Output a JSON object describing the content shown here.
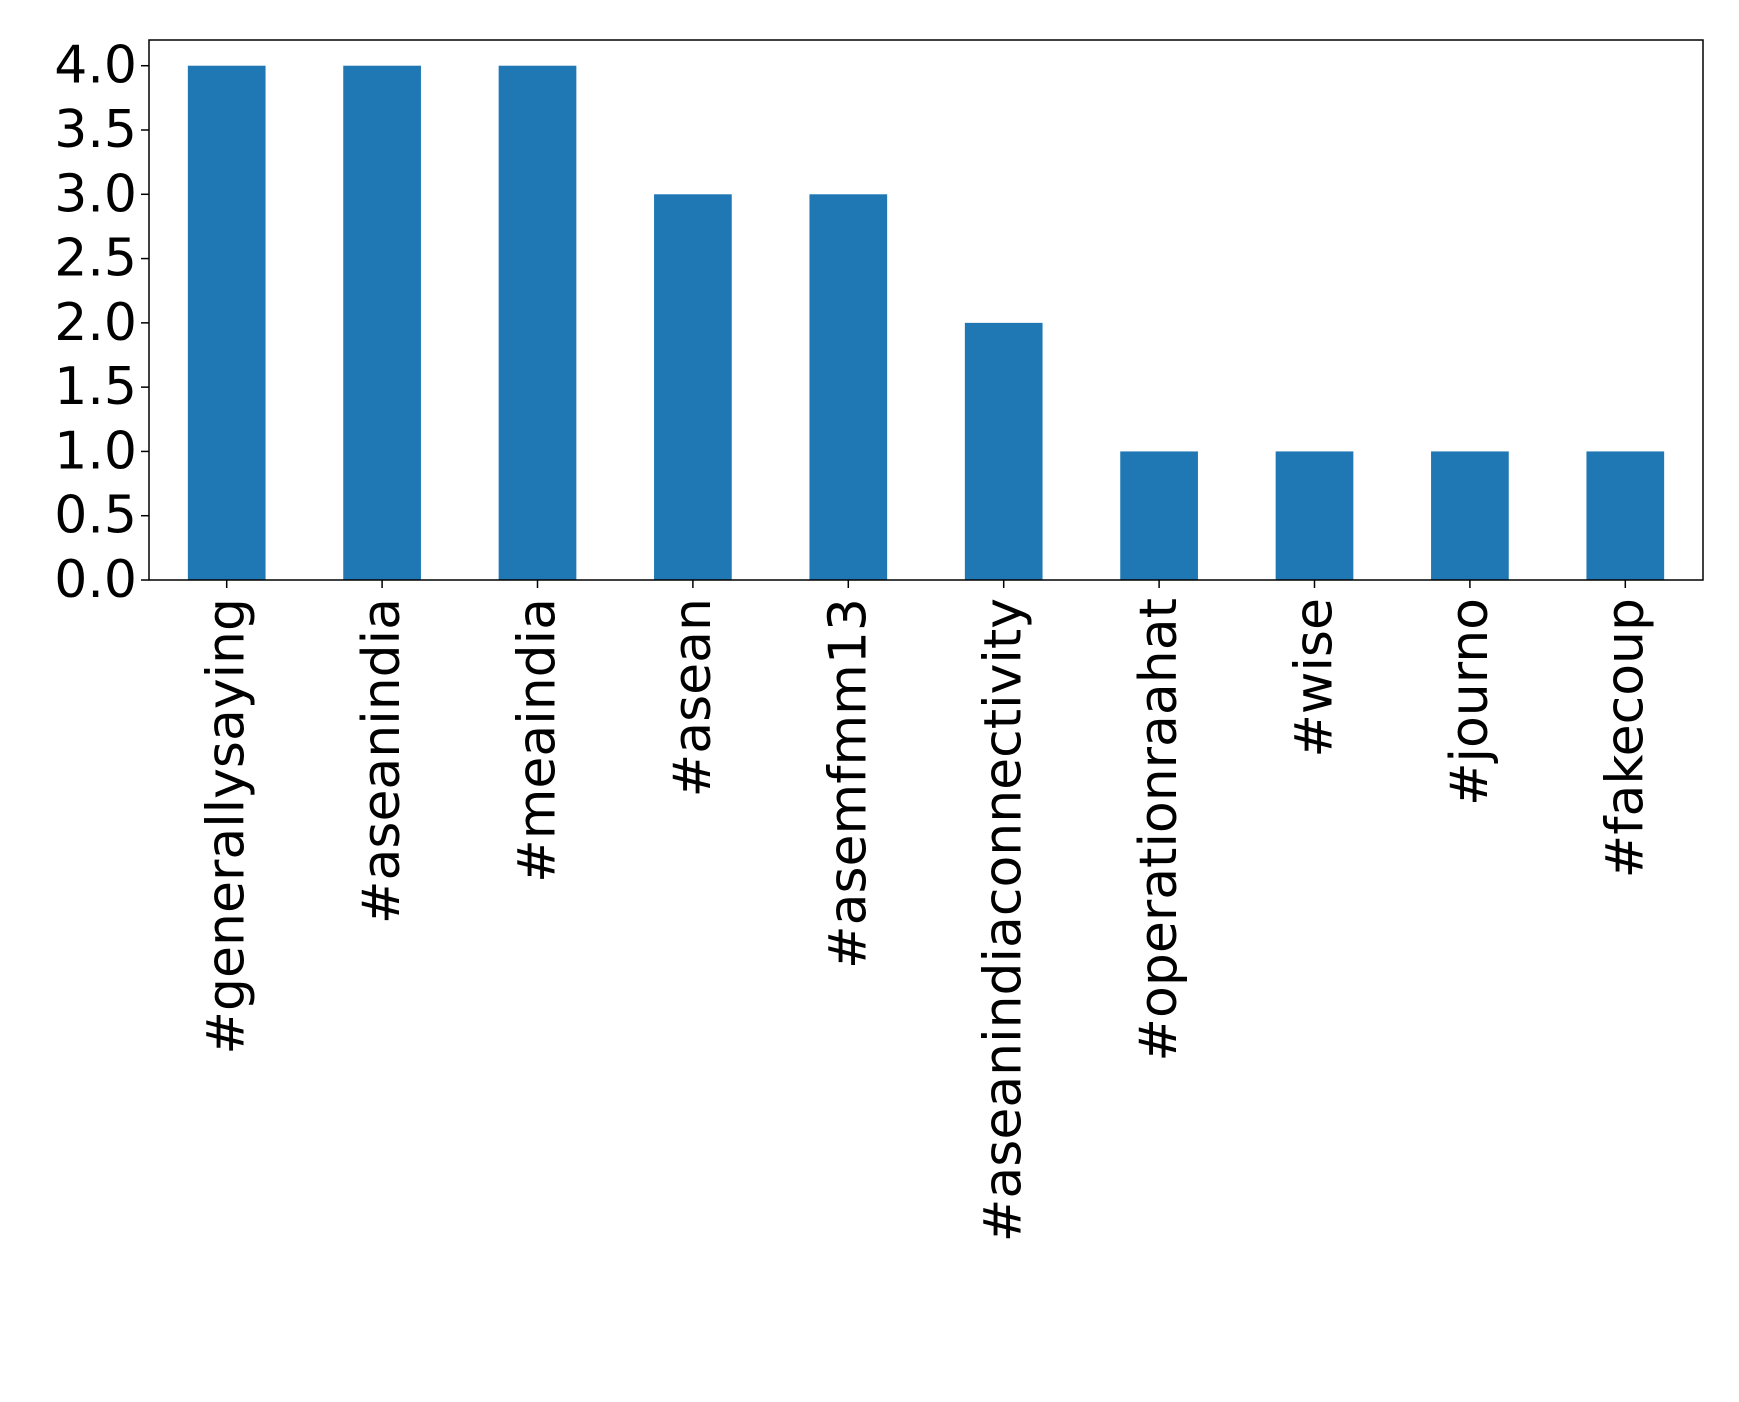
{
  "chart_data": {
    "type": "bar",
    "categories": [
      "#generallysaying",
      "#aseanindia",
      "#meaindia",
      "#asean",
      "#asemfmm13",
      "#aseanindiaconnectivity",
      "#operationraahat",
      "#wise",
      "#journo",
      "#fakecoup"
    ],
    "values": [
      4,
      4,
      4,
      3,
      3,
      2,
      1,
      1,
      1,
      1
    ],
    "title": "",
    "xlabel": "",
    "ylabel": "",
    "ylim": [
      0,
      4.2
    ],
    "yticks": [
      "0.0",
      "0.5",
      "1.0",
      "1.5",
      "2.0",
      "2.5",
      "3.0",
      "3.5",
      "4.0"
    ],
    "bar_color": "#1f77b4",
    "grid": false,
    "legend": "none"
  }
}
